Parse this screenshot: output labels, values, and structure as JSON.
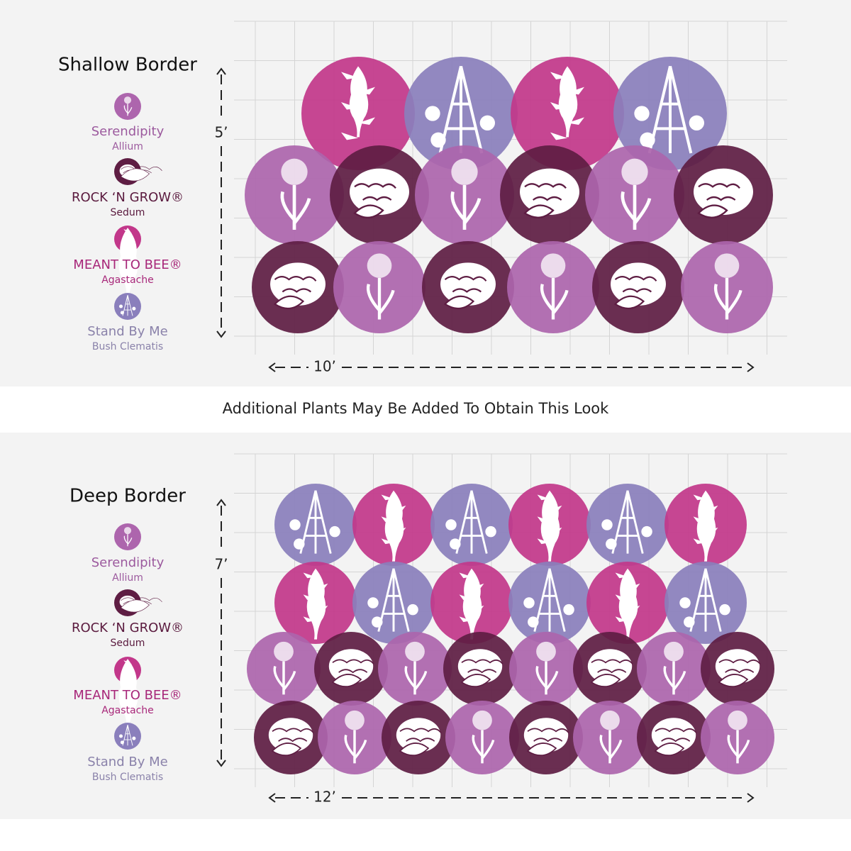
{
  "panels": [
    {
      "title": "Shallow Border",
      "legend": [
        {
          "name": "Serendipity",
          "species": "Allium"
        },
        {
          "name": "ROCK ‘N GROW®",
          "species": "Sedum"
        },
        {
          "name": "MEANT TO BEE®",
          "species": "Agastache"
        },
        {
          "name": "Stand By Me",
          "species": "Bush Clematis"
        }
      ],
      "height_label": "5’",
      "width_label": "10’"
    },
    {
      "title": "Deep Border",
      "legend": [
        {
          "name": "Serendipity",
          "species": "Allium"
        },
        {
          "name": "ROCK ‘N GROW®",
          "species": "Sedum"
        },
        {
          "name": "MEANT TO BEE®",
          "species": "Agastache"
        },
        {
          "name": "Stand By Me",
          "species": "Bush Clematis"
        }
      ],
      "height_label": "7’",
      "width_label": "12’"
    }
  ],
  "banner": "Additional Plants May Be Added To Obtain This Look"
}
